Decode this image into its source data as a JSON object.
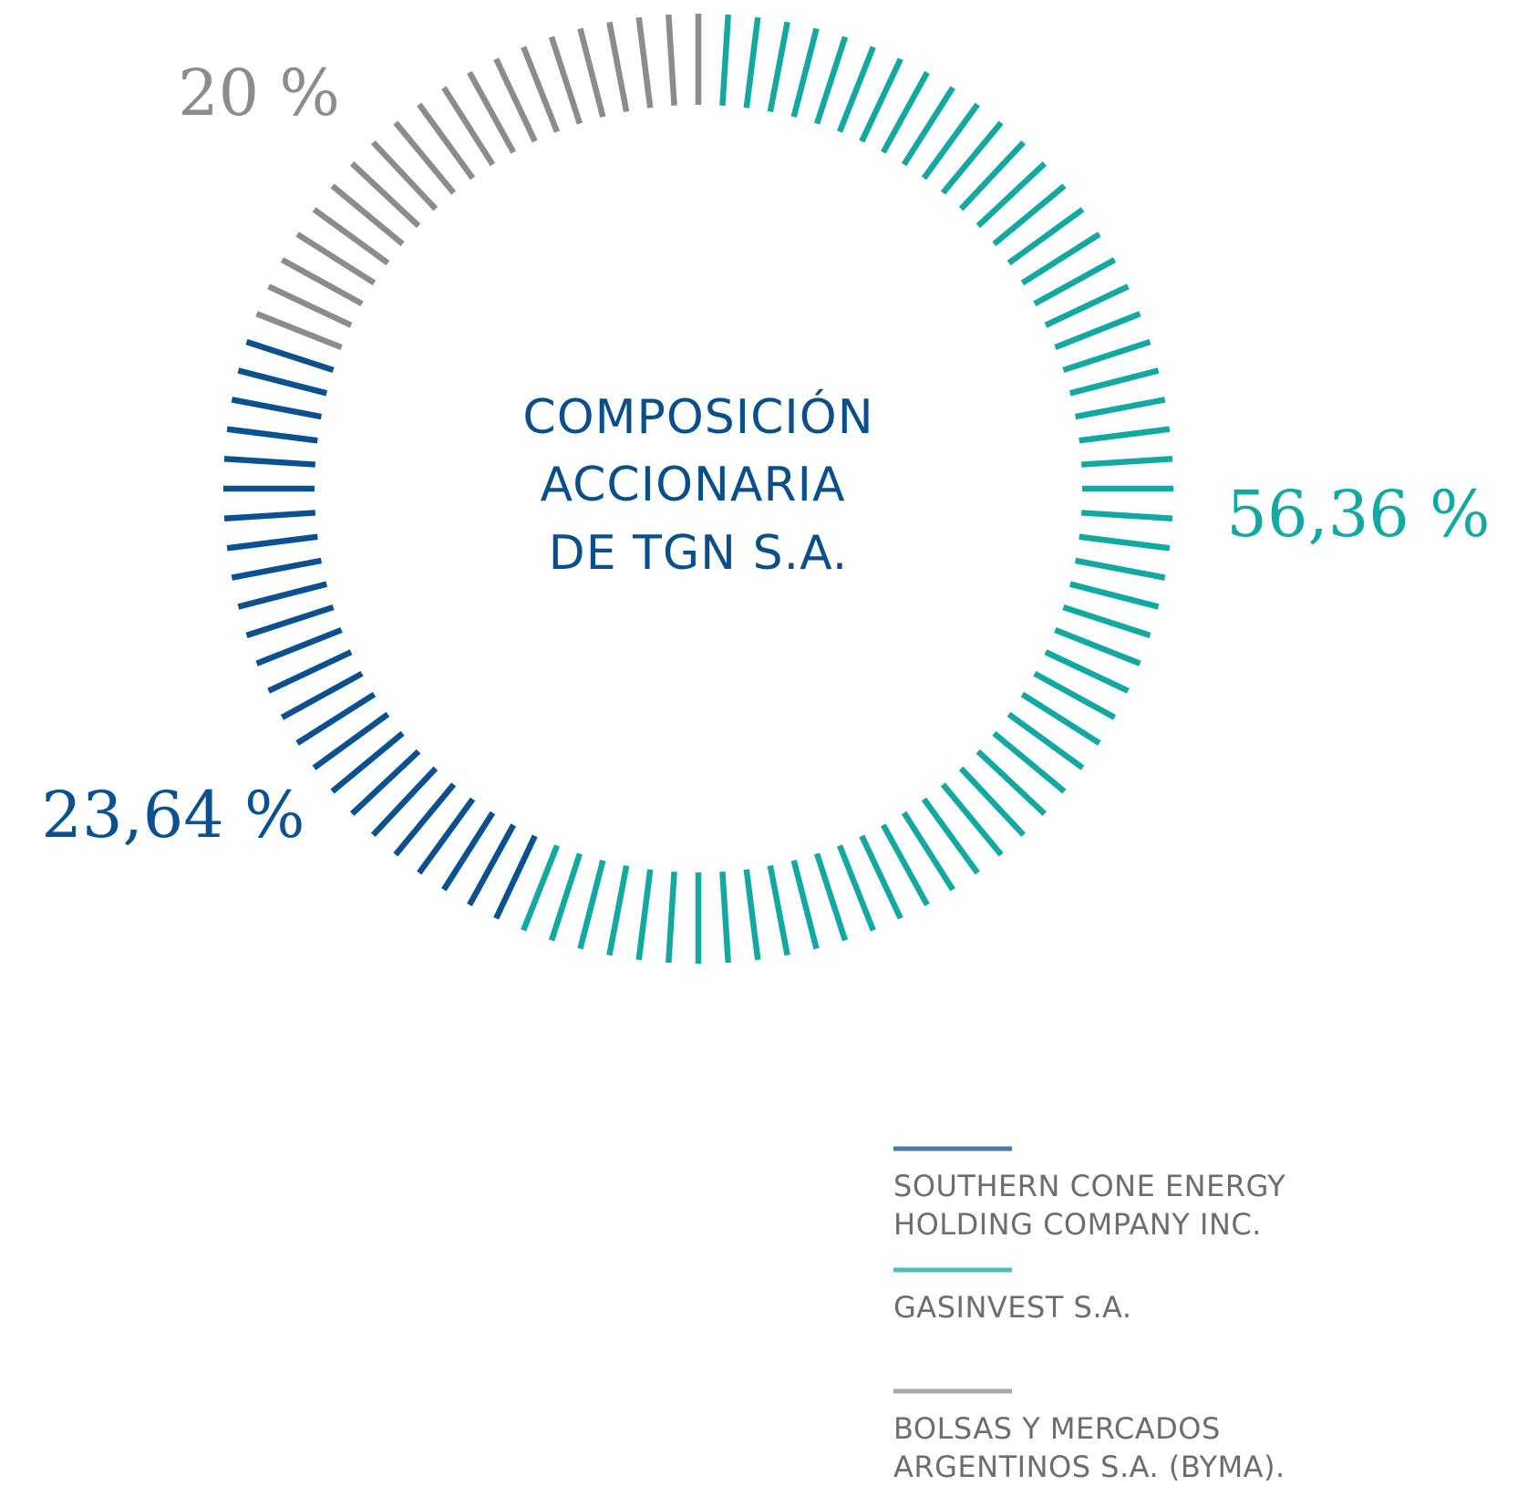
{
  "chart_data": {
    "type": "donut",
    "title": [
      "COMPOSICIÓN",
      "ACCIONARIA",
      "DE TGN S.A."
    ],
    "series": [
      {
        "name": "SOUTHERN CONE ENERGY HOLDING COMPANY INC.",
        "color": "#0b5190",
        "values": [
          23.64
        ],
        "value_labels": [
          "23,64 %"
        ]
      },
      {
        "name": "GASINVEST S.A.",
        "color": "#12a9a3",
        "values": [
          56.36
        ],
        "value_labels": [
          "56,36 %"
        ]
      },
      {
        "name": "BOLSAS Y MERCADOS ARGENTINOS S.A. (BYMA).",
        "color": "#8c8c8c",
        "values": [
          20
        ],
        "value_labels": [
          "20 %"
        ]
      }
    ],
    "direction": "counterclockwise",
    "start_angle": 288
  }
}
